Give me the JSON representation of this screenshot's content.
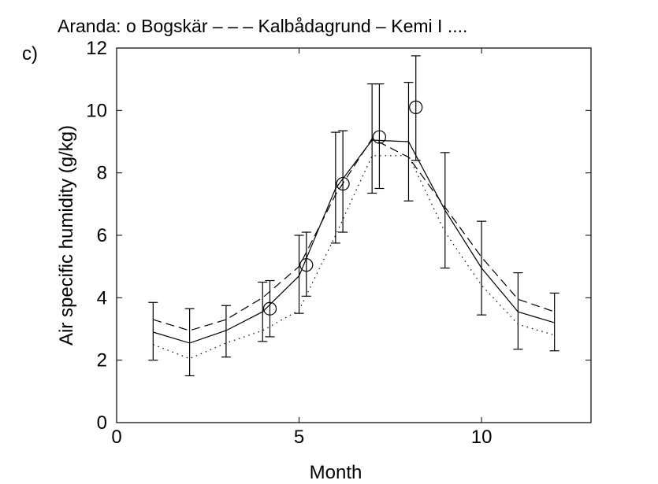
{
  "panel_label": "c)",
  "legend_text": "Aranda:  o  Bogskär – – –  Kalbådagrund –  Kemi I ....",
  "chart_data": {
    "type": "line",
    "xlabel": "Month",
    "ylabel": "Air specific humidity (g/kg)",
    "xlim": [
      0,
      13
    ],
    "ylim": [
      0,
      12
    ],
    "xticks": [
      0,
      5,
      10
    ],
    "yticks": [
      0,
      2,
      4,
      6,
      8,
      10,
      12
    ],
    "grid": false,
    "legend_location": "top",
    "series": [
      {
        "name": "Bogskär",
        "style": "circle",
        "x": [
          4.2,
          5.2,
          6.2,
          7.2,
          8.2
        ],
        "y": [
          3.65,
          5.05,
          7.65,
          9.15,
          10.1
        ]
      },
      {
        "name": "Kalbådagrund",
        "style": "dashed",
        "x": [
          1,
          2,
          3,
          4,
          5,
          6,
          7,
          8,
          9,
          10,
          11,
          12
        ],
        "y": [
          3.3,
          2.95,
          3.3,
          4.0,
          5.0,
          7.3,
          9.1,
          8.5,
          6.9,
          5.3,
          3.95,
          3.55
        ]
      },
      {
        "name": "Kalbådagrund (solid)",
        "style": "solid",
        "x": [
          1,
          2,
          3,
          4,
          5,
          6,
          7,
          8,
          9,
          10,
          11,
          12
        ],
        "y": [
          2.9,
          2.55,
          2.95,
          3.55,
          4.7,
          7.5,
          9.05,
          9.0,
          6.8,
          4.95,
          3.55,
          3.2
        ],
        "error_bars": [
          {
            "x": 1,
            "low": 2.0,
            "high": 3.85
          },
          {
            "x": 2,
            "low": 1.5,
            "high": 3.65
          },
          {
            "x": 3,
            "low": 2.1,
            "high": 3.75
          },
          {
            "x": 4,
            "low": 2.6,
            "high": 4.5
          },
          {
            "x": 4.2,
            "low": 2.75,
            "high": 4.55
          },
          {
            "x": 5,
            "low": 3.5,
            "high": 6.0
          },
          {
            "x": 5.2,
            "low": 4.05,
            "high": 6.1
          },
          {
            "x": 6,
            "low": 5.75,
            "high": 9.3
          },
          {
            "x": 6.2,
            "low": 6.1,
            "high": 9.35
          },
          {
            "x": 7,
            "low": 7.35,
            "high": 10.85
          },
          {
            "x": 7.2,
            "low": 7.5,
            "high": 10.85
          },
          {
            "x": 8,
            "low": 7.1,
            "high": 10.9
          },
          {
            "x": 8.2,
            "low": 8.4,
            "high": 11.75
          },
          {
            "x": 9,
            "low": 4.95,
            "high": 8.65
          },
          {
            "x": 10,
            "low": 3.45,
            "high": 6.45
          },
          {
            "x": 11,
            "low": 2.35,
            "high": 4.8
          },
          {
            "x": 12,
            "low": 2.3,
            "high": 4.15
          }
        ]
      },
      {
        "name": "Kemi I",
        "style": "dotted",
        "x": [
          1,
          2,
          3,
          4,
          5,
          6,
          7,
          8,
          9,
          10,
          11,
          12
        ],
        "y": [
          2.5,
          2.05,
          2.55,
          2.95,
          3.6,
          6.0,
          8.55,
          8.55,
          6.1,
          4.4,
          3.15,
          2.8
        ]
      }
    ]
  }
}
